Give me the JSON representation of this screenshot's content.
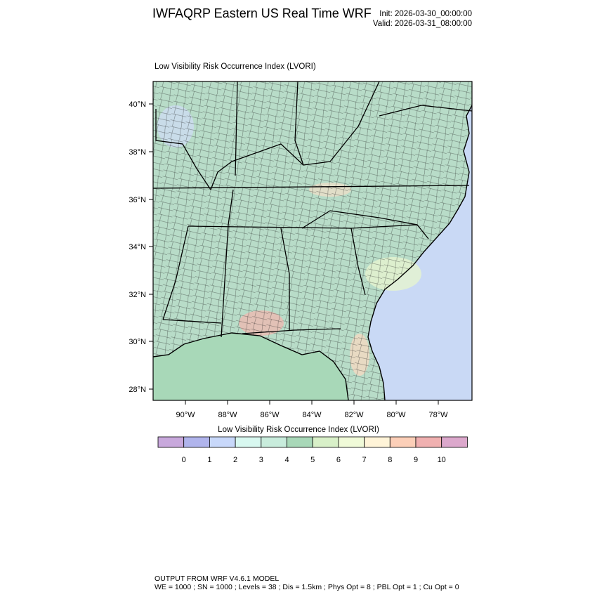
{
  "header": {
    "title": "IWFAQRP Eastern US Real Time WRF",
    "init": "Init: 2026-03-30_00:00:00",
    "valid": "Valid: 2026-03-31_08:00:00"
  },
  "map": {
    "subtitle": "Low Visibility Risk Occurrence Index   (LVORI)",
    "lat_labels": [
      "40°N",
      "38°N",
      "36°N",
      "34°N",
      "32°N",
      "30°N",
      "28°N"
    ],
    "lon_labels": [
      "90°W",
      "88°W",
      "86°W",
      "84°W",
      "82°W",
      "80°W",
      "78°W"
    ],
    "colors": {
      "land": "#b8dcc8",
      "ocean": "#c9d9f5",
      "gulf": "#a8d8b8"
    }
  },
  "colorbar": {
    "title": "Low Visibility Risk Occurrence Index  (LVORI)",
    "labels": [
      "0",
      "1",
      "2",
      "3",
      "4",
      "5",
      "6",
      "7",
      "8",
      "9",
      "10"
    ],
    "colors": [
      "#c8a8dc",
      "#b0b4ec",
      "#c8d8fa",
      "#d8f8f0",
      "#c8ecdc",
      "#a8d8b8",
      "#d8f0c8",
      "#f0fad8",
      "#fff4d8",
      "#fccfb8",
      "#f0b0b0",
      "#dca8cc"
    ]
  },
  "footer": {
    "line1": "OUTPUT FROM WRF V4.6.1 MODEL",
    "line2": "WE = 1000 ; SN = 1000 ; Levels = 38 ; Dis = 1.5km ; Phys Opt = 8 ; PBL Opt = 1 ; Cu Opt = 0"
  }
}
